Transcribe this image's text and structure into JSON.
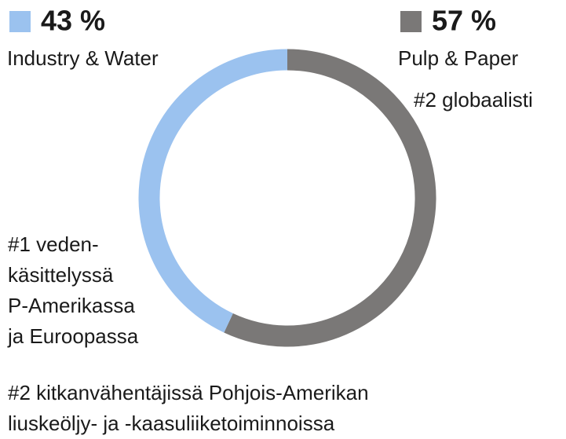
{
  "chart_data": {
    "type": "pie",
    "donut": true,
    "series": [
      {
        "name": "Industry & Water",
        "color": "#9bc2ef",
        "values": [
          43
        ],
        "value_labels": [
          "43 %"
        ]
      },
      {
        "name": "Pulp & Paper",
        "color": "#7a7877",
        "values": [
          57
        ],
        "value_labels": [
          "57 %"
        ]
      }
    ],
    "annotations": [
      [
        "#2 globaalisti"
      ],
      [
        "#1 veden-",
        "käsittelyssä",
        "P-Amerikassa",
        "ja Euroopassa"
      ],
      [
        "#2 kitkanvähentäjissä Pohjois-Amerikan",
        "liuskeöljy- ja -kaasuliiketoiminnoissa"
      ]
    ]
  }
}
